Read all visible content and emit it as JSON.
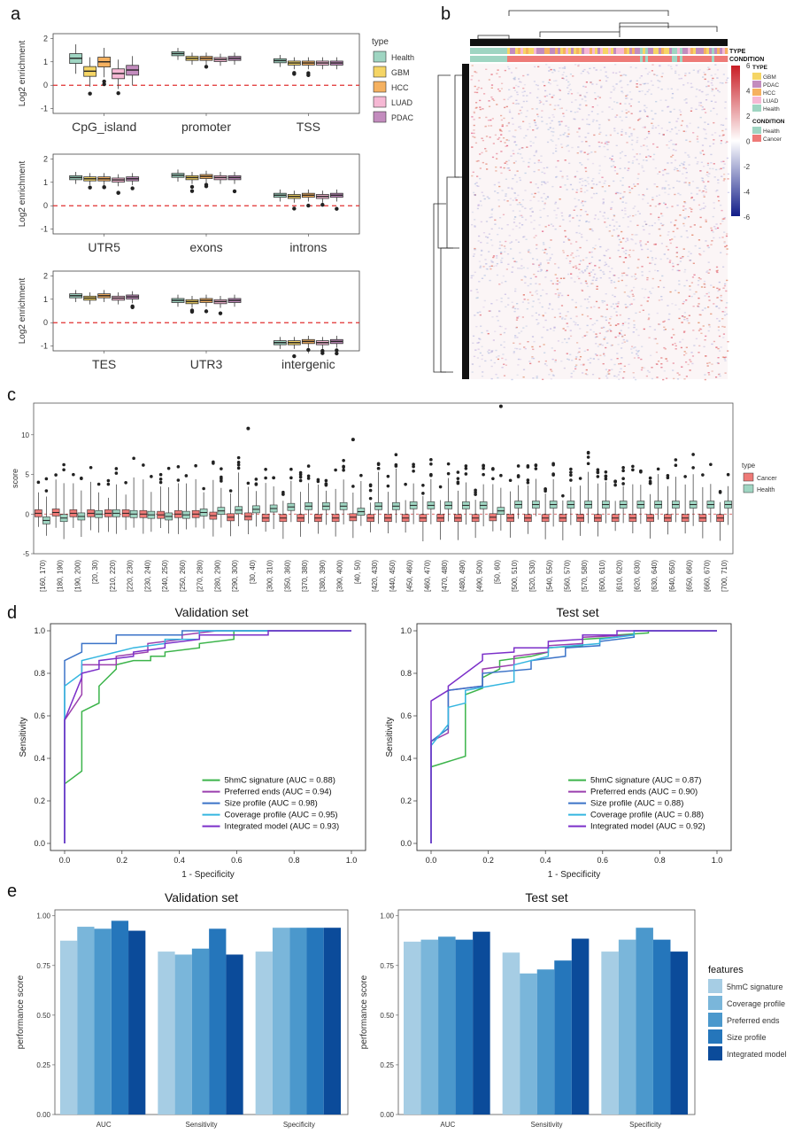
{
  "panel_labels": [
    "a",
    "b",
    "c",
    "d",
    "e"
  ],
  "colors": {
    "type": {
      "Health": "#9fd5c2",
      "GBM": "#f5d565",
      "HCC": "#f5b160",
      "LUAD": "#f6b8d4",
      "PDAC": "#c38cbe"
    },
    "condition": {
      "Health": "#9fd5c2",
      "Cancer": "#ee7a77"
    },
    "roc": {
      "5hmC signature": "#3cb44b",
      "Preferred ends": "#9b3fae",
      "Size profile": "#3b73c8",
      "Coverage profile": "#35b6e0",
      "Integrated model": "#7b2fc9"
    },
    "features": {
      "5hmC signature": "#a6cde4",
      "Coverage profile": "#7ab6da",
      "Preferred ends": "#4b98cc",
      "Size profile": "#2576bb",
      "Integrated model": "#0b4b9a"
    }
  },
  "chart_data": [
    {
      "id": "a",
      "type": "box",
      "ylabel": "Log2 enrichment",
      "ylim": [
        -1.2,
        2.2
      ],
      "yticks": [
        -1,
        0,
        1,
        2
      ],
      "reference_line": 0,
      "legend_title": "type",
      "legend": [
        "Health",
        "GBM",
        "HCC",
        "LUAD",
        "PDAC"
      ],
      "rows": [
        {
          "categories": [
            "CpG_island",
            "promoter",
            "TSS"
          ],
          "medians": [
            [
              1.15,
              0.6,
              1.0,
              0.5,
              0.65
            ],
            [
              1.35,
              1.15,
              1.15,
              1.1,
              1.15
            ],
            [
              1.05,
              0.95,
              0.95,
              0.95,
              0.95
            ]
          ]
        },
        {
          "categories": [
            "UTR5",
            "exons",
            "introns"
          ],
          "medians": [
            [
              1.2,
              1.15,
              1.15,
              1.1,
              1.15
            ],
            [
              1.3,
              1.2,
              1.25,
              1.2,
              1.2
            ],
            [
              0.45,
              0.4,
              0.45,
              0.4,
              0.45
            ]
          ]
        },
        {
          "categories": [
            "TES",
            "UTR3",
            "intergenic"
          ],
          "medians": [
            [
              1.15,
              1.05,
              1.15,
              1.05,
              1.1
            ],
            [
              0.95,
              0.9,
              0.95,
              0.9,
              0.95
            ],
            [
              -0.85,
              -0.85,
              -0.8,
              -0.85,
              -0.8
            ]
          ]
        }
      ]
    },
    {
      "id": "b",
      "type": "heatmap",
      "annotation_rows": [
        "TYPE",
        "CONDITION"
      ],
      "colorbar_ticks": [
        6,
        4,
        2,
        0,
        -2,
        -4,
        -6
      ],
      "legend_groups": [
        {
          "title": "TYPE",
          "items": [
            "GBM",
            "PDAC",
            "HCC",
            "LUAD",
            "Health"
          ]
        },
        {
          "title": "CONDITION",
          "items": [
            "Health",
            "Cancer"
          ]
        }
      ]
    },
    {
      "id": "c",
      "type": "box",
      "ylabel": "score",
      "ylim": [
        -5,
        14
      ],
      "yticks": [
        -5,
        0,
        5,
        10
      ],
      "legend_title": "type",
      "legend": [
        "Cancer",
        "Health"
      ],
      "categories": [
        "[160, 170)",
        "[180, 190)",
        "[190, 200)",
        "[20, 30)",
        "[210, 220)",
        "[220, 230)",
        "[230, 240)",
        "[240, 250)",
        "[250, 260)",
        "[270, 280)",
        "[280, 290)",
        "[290, 300)",
        "[30, 40)",
        "[300, 310)",
        "[350, 360)",
        "[370, 380)",
        "[380, 390)",
        "[390, 400)",
        "[40, 50)",
        "[420, 430)",
        "[440, 450)",
        "[450, 460)",
        "[460, 470)",
        "[470, 480)",
        "[480, 490)",
        "[490, 500)",
        "[50, 60)",
        "[500, 510)",
        "[520, 530)",
        "[540, 550)",
        "[560, 570)",
        "[570, 580)",
        "[600, 610)",
        "[610, 620)",
        "[620, 630)",
        "[630, 640)",
        "[640, 650)",
        "[650, 660)",
        "[660, 670)",
        "[700, 710)"
      ],
      "cancer_median": [
        0.1,
        0.2,
        0.1,
        0.1,
        0.1,
        0.1,
        0.0,
        -0.1,
        0.0,
        0.0,
        -0.2,
        -0.4,
        -0.3,
        -0.5,
        -0.5,
        -0.5,
        -0.5,
        -0.5,
        -0.4,
        -0.5,
        -0.5,
        -0.5,
        -0.5,
        -0.5,
        -0.5,
        -0.5,
        -0.4,
        -0.5,
        -0.5,
        -0.5,
        -0.5,
        -0.5,
        -0.5,
        -0.5,
        -0.5,
        -0.5,
        -0.5,
        -0.5,
        -0.5,
        -0.5
      ],
      "health_median": [
        -0.8,
        -0.5,
        -0.3,
        0.0,
        0.1,
        0.0,
        -0.1,
        -0.3,
        -0.1,
        0.2,
        0.4,
        0.5,
        0.6,
        0.7,
        0.9,
        1.0,
        1.0,
        1.0,
        0.3,
        1.0,
        1.0,
        1.1,
        1.1,
        1.1,
        1.1,
        1.1,
        0.4,
        1.2,
        1.2,
        1.2,
        1.2,
        1.2,
        1.2,
        1.2,
        1.2,
        1.2,
        1.2,
        1.2,
        1.2,
        1.2
      ]
    },
    {
      "id": "d1",
      "type": "line",
      "title": "Validation set",
      "xlabel": "1 - Specificity",
      "ylabel": "Sensitivity",
      "xlim": [
        0,
        1
      ],
      "ylim": [
        0,
        1
      ],
      "ticks": [
        "0.0",
        "0.2",
        "0.4",
        "0.6",
        "0.8",
        "1.0"
      ],
      "series": [
        {
          "name": "5hmC signature (AUC = 0.88)",
          "key": "5hmC signature",
          "x": [
            0,
            0,
            0.06,
            0.06,
            0.12,
            0.12,
            0.18,
            0.18,
            0.24,
            0.3,
            0.3,
            0.35,
            0.35,
            0.47,
            0.47,
            0.59,
            0.59,
            1
          ],
          "y": [
            0.28,
            0.28,
            0.34,
            0.62,
            0.66,
            0.74,
            0.82,
            0.84,
            0.86,
            0.86,
            0.88,
            0.88,
            0.9,
            0.92,
            0.94,
            0.96,
            1,
            1
          ]
        },
        {
          "name": "Preferred ends (AUC = 0.94)",
          "key": "Preferred ends",
          "x": [
            0,
            0,
            0.06,
            0.06,
            0.18,
            0.18,
            0.29,
            0.29,
            0.41,
            0.41,
            0.53,
            1
          ],
          "y": [
            0,
            0.58,
            0.7,
            0.84,
            0.84,
            0.88,
            0.9,
            0.94,
            0.96,
            0.98,
            1,
            1
          ]
        },
        {
          "name": "Size profile (AUC = 0.98)",
          "key": "Size profile",
          "x": [
            0,
            0,
            0.06,
            0.06,
            0.18,
            0.18,
            0.41,
            0.41,
            1
          ],
          "y": [
            0,
            0.86,
            0.9,
            0.94,
            0.94,
            0.98,
            0.98,
            1,
            1
          ]
        },
        {
          "name": "Coverage profile (AUC = 0.95)",
          "key": "Coverage profile",
          "x": [
            0,
            0,
            0.06,
            0.06,
            0.12,
            0.18,
            0.24,
            0.35,
            0.35,
            0.47,
            0.47,
            1
          ],
          "y": [
            0,
            0.74,
            0.8,
            0.86,
            0.88,
            0.9,
            0.92,
            0.94,
            0.96,
            0.96,
            1,
            1
          ]
        },
        {
          "name": "Integrated model (AUC = 0.93)",
          "key": "Integrated model",
          "x": [
            0,
            0,
            0.06,
            0.06,
            0.12,
            0.12,
            0.24,
            0.24,
            0.35,
            0.35,
            0.47,
            0.47,
            0.71,
            0.71,
            1
          ],
          "y": [
            0,
            0.58,
            0.78,
            0.8,
            0.82,
            0.86,
            0.88,
            0.9,
            0.92,
            0.94,
            0.96,
            0.98,
            0.98,
            1,
            1
          ]
        }
      ]
    },
    {
      "id": "d2",
      "type": "line",
      "title": "Test set",
      "xlabel": "1 - Specificity",
      "ylabel": "Sensitivity",
      "xlim": [
        0,
        1
      ],
      "ylim": [
        0,
        1
      ],
      "ticks": [
        "0.0",
        "0.2",
        "0.4",
        "0.6",
        "0.8",
        "1.0"
      ],
      "series": [
        {
          "name": "5hmC signature (AUC = 0.87)",
          "key": "5hmC signature",
          "x": [
            0,
            0,
            0.12,
            0.12,
            0.18,
            0.18,
            0.24,
            0.24,
            0.35,
            0.41,
            0.41,
            0.53,
            0.53,
            0.65,
            0.65,
            0.76,
            0.76,
            1
          ],
          "y": [
            0,
            0.36,
            0.41,
            0.7,
            0.73,
            0.78,
            0.82,
            0.86,
            0.88,
            0.9,
            0.92,
            0.93,
            0.96,
            0.97,
            0.98,
            0.99,
            1,
            1
          ]
        },
        {
          "name": "Preferred ends (AUC = 0.90)",
          "key": "Preferred ends",
          "x": [
            0,
            0,
            0.06,
            0.06,
            0.18,
            0.18,
            0.29,
            0.29,
            0.41,
            0.41,
            0.53,
            0.53,
            0.71,
            0.71,
            1
          ],
          "y": [
            0,
            0.48,
            0.52,
            0.72,
            0.74,
            0.82,
            0.84,
            0.88,
            0.9,
            0.93,
            0.94,
            0.97,
            0.98,
            1,
            1
          ]
        },
        {
          "name": "Size profile (AUC = 0.88)",
          "key": "Size profile",
          "x": [
            0,
            0,
            0.06,
            0.06,
            0.18,
            0.18,
            0.35,
            0.35,
            0.47,
            0.47,
            0.59,
            0.59,
            0.71,
            0.71,
            1
          ],
          "y": [
            0,
            0.48,
            0.54,
            0.72,
            0.74,
            0.8,
            0.82,
            0.86,
            0.88,
            0.92,
            0.93,
            0.95,
            0.97,
            1,
            1
          ]
        },
        {
          "name": "Coverage profile (AUC = 0.88)",
          "key": "Coverage profile",
          "x": [
            0,
            0,
            0.06,
            0.06,
            0.12,
            0.12,
            0.29,
            0.29,
            0.41,
            0.41,
            0.59,
            0.59,
            0.71,
            0.71,
            1
          ],
          "y": [
            0,
            0.46,
            0.56,
            0.64,
            0.66,
            0.72,
            0.76,
            0.84,
            0.88,
            0.92,
            0.94,
            0.96,
            0.98,
            1,
            1
          ]
        },
        {
          "name": "Integrated model (AUC = 0.92)",
          "key": "Integrated model",
          "x": [
            0,
            0,
            0.06,
            0.06,
            0.18,
            0.18,
            0.29,
            0.29,
            0.41,
            0.41,
            0.53,
            0.53,
            0.65,
            0.65,
            1
          ],
          "y": [
            0,
            0.67,
            0.72,
            0.74,
            0.86,
            0.89,
            0.9,
            0.92,
            0.92,
            0.95,
            0.96,
            0.98,
            0.98,
            1,
            1
          ]
        }
      ]
    },
    {
      "id": "e1",
      "type": "bar",
      "title": "Validation set",
      "ylabel": "performance score",
      "ylim": [
        0,
        1.03
      ],
      "yticks": [
        "0.00",
        "0.25",
        "0.50",
        "0.75",
        "1.00"
      ],
      "categories": [
        "AUC",
        "Sensitivity",
        "Specificity"
      ],
      "series": [
        {
          "name": "5hmC signature",
          "values": [
            0.875,
            0.82,
            0.82
          ]
        },
        {
          "name": "Coverage profile",
          "values": [
            0.945,
            0.805,
            0.94
          ]
        },
        {
          "name": "Preferred ends",
          "values": [
            0.935,
            0.835,
            0.94
          ]
        },
        {
          "name": "Size profile",
          "values": [
            0.975,
            0.935,
            0.94
          ]
        },
        {
          "name": "Integrated model",
          "values": [
            0.925,
            0.805,
            0.94
          ]
        }
      ]
    },
    {
      "id": "e2",
      "type": "bar",
      "title": "Test set",
      "ylabel": "performance score",
      "ylim": [
        0,
        1.03
      ],
      "yticks": [
        "0.00",
        "0.25",
        "0.50",
        "0.75",
        "1.00"
      ],
      "categories": [
        "AUC",
        "Sensitivity",
        "Specificity"
      ],
      "legend_title": "features",
      "series": [
        {
          "name": "5hmC signature",
          "values": [
            0.87,
            0.815,
            0.82
          ]
        },
        {
          "name": "Coverage profile",
          "values": [
            0.88,
            0.71,
            0.88
          ]
        },
        {
          "name": "Preferred ends",
          "values": [
            0.895,
            0.73,
            0.94
          ]
        },
        {
          "name": "Size profile",
          "values": [
            0.88,
            0.775,
            0.88
          ]
        },
        {
          "name": "Integrated model",
          "values": [
            0.92,
            0.885,
            0.82
          ]
        }
      ]
    }
  ]
}
